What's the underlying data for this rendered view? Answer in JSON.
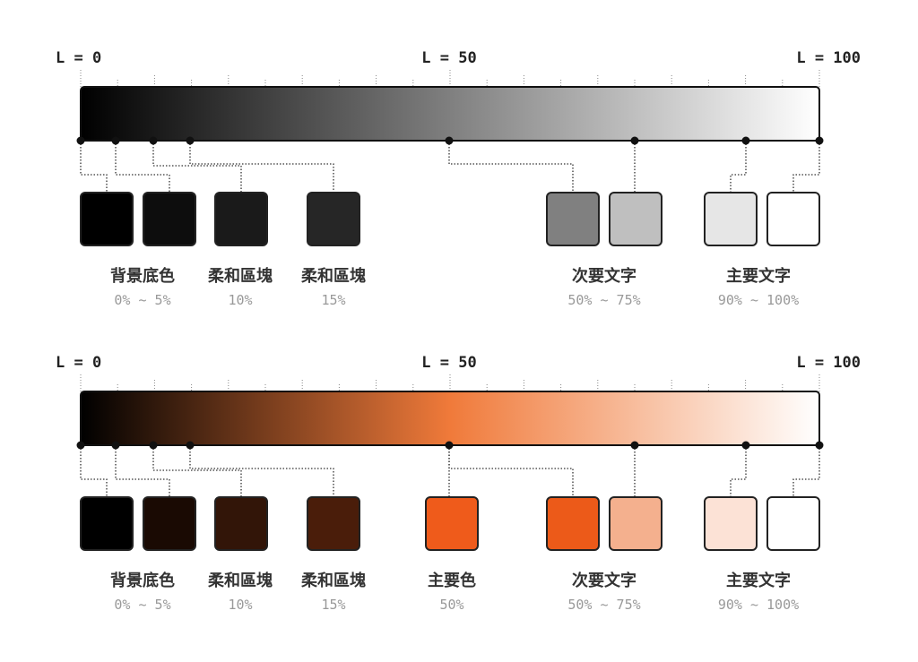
{
  "panels": [
    {
      "scale": [
        "L = 0",
        "L = 50",
        "L = 100"
      ],
      "groups": [
        {
          "label": "背景底色",
          "range": "0% ~ 5%"
        },
        {
          "label": "柔和區塊",
          "range": "10%"
        },
        {
          "label": "柔和區塊",
          "range": "15%"
        },
        {
          "label": "次要文字",
          "range": "50% ~ 75%"
        },
        {
          "label": "主要文字",
          "range": "90% ~ 100%"
        }
      ]
    },
    {
      "scale": [
        "L = 0",
        "L = 50",
        "L = 100"
      ],
      "groups": [
        {
          "label": "背景底色",
          "range": "0% ~ 5%"
        },
        {
          "label": "柔和區塊",
          "range": "10%"
        },
        {
          "label": "柔和區塊",
          "range": "15%"
        },
        {
          "label": "主要色",
          "range": "50%"
        },
        {
          "label": "次要文字",
          "range": "50% ~ 75%"
        },
        {
          "label": "主要文字",
          "range": "90% ~ 100%"
        }
      ]
    }
  ]
}
